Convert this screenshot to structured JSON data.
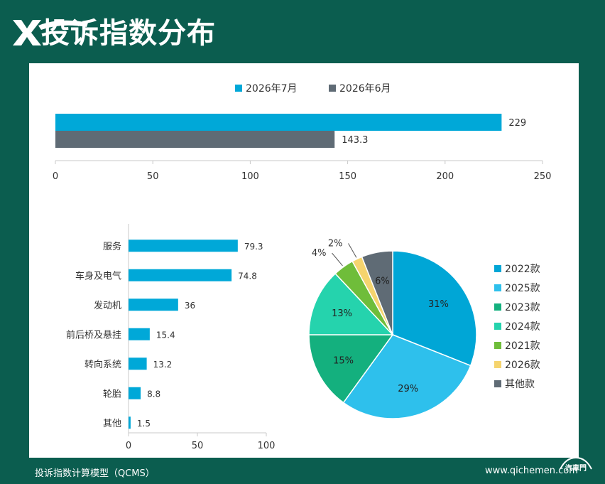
{
  "header": {
    "title": "投诉指数分布",
    "logo_text": "XTOU"
  },
  "footer": {
    "left": "投诉指数计算模型（QCMS）",
    "right": "www.qichemen.com",
    "brand": "汽車門"
  },
  "colors": {
    "background": "#0b5d4f",
    "panel": "#ffffff",
    "july": "#00a8d8",
    "june": "#5f6b75"
  },
  "chart_data": [
    {
      "type": "bar",
      "orientation": "horizontal",
      "series": [
        {
          "name": "2026年7月",
          "values": [
            229
          ],
          "color": "#00a8d8"
        },
        {
          "name": "2026年6月",
          "values": [
            143.3
          ],
          "color": "#5f6b75"
        }
      ],
      "data_labels": [
        "229",
        "143.3"
      ],
      "xlim": [
        0,
        250
      ],
      "xticks": [
        "0",
        "50",
        "100",
        "150",
        "200",
        "250"
      ],
      "legend_position": "top"
    },
    {
      "type": "bar",
      "orientation": "horizontal",
      "categories": [
        "服务",
        "车身及电气",
        "发动机",
        "前后桥及悬挂",
        "转向系统",
        "轮胎",
        "其他"
      ],
      "values": [
        79.3,
        74.8,
        36,
        15.4,
        13.2,
        8.8,
        1.5
      ],
      "data_labels": [
        "79.3",
        "74.8",
        "36",
        "15.4",
        "13.2",
        "8.8",
        "1.5"
      ],
      "color": "#00a8d8",
      "xlim": [
        0,
        100
      ],
      "xticks": [
        "0",
        "50",
        "100"
      ]
    },
    {
      "type": "pie",
      "slices": [
        {
          "name": "2022款",
          "value": 31,
          "label": "31%",
          "color": "#00a6d6"
        },
        {
          "name": "2025款",
          "value": 29,
          "label": "29%",
          "color": "#2ec0ec"
        },
        {
          "name": "2023款",
          "value": 15,
          "label": "15%",
          "color": "#14b07e"
        },
        {
          "name": "2024款",
          "value": 13,
          "label": "13%",
          "color": "#25d3ad"
        },
        {
          "name": "2021款",
          "value": 4,
          "label": "4%",
          "color": "#6fbd3a"
        },
        {
          "name": "2026款",
          "value": 2,
          "label": "2%",
          "color": "#f5d46e"
        },
        {
          "name": "其他款",
          "value": 6,
          "label": "6%",
          "color": "#5f6b75"
        }
      ],
      "legend_position": "right"
    }
  ]
}
